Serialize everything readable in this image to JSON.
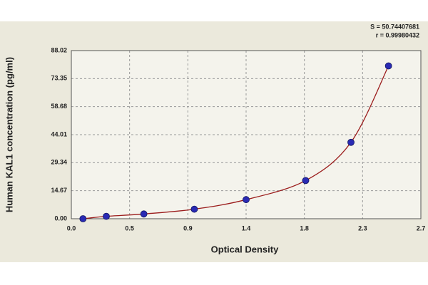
{
  "chart_data": {
    "type": "scatter",
    "x_label": "Optical Density",
    "y_label": "Human KAL1 concentration (pg/ml)",
    "annotations": [
      "S = 50.74407681",
      "r = 0.99980432"
    ],
    "x": [
      0.09,
      0.27,
      0.56,
      0.95,
      1.35,
      1.81,
      2.16,
      2.45
    ],
    "values": [
      0,
      1.25,
      2.5,
      5,
      10,
      20,
      40,
      80
    ],
    "color": "#2a2ab4",
    "line_color": "#9b1c1c",
    "xlim": [
      0,
      2.7
    ],
    "ylim": [
      0,
      88.02
    ],
    "xticks": [
      {
        "value": 0,
        "label": "0.0"
      },
      {
        "value": 0.45,
        "label": "0.5"
      },
      0.9,
      {
        "value": 1.35,
        "label": "1.4"
      },
      1.8,
      {
        "value": 2.25,
        "label": "2.3"
      },
      2.7
    ],
    "yticks": [
      {
        "value": 0,
        "label": "0.00"
      },
      14.67,
      29.34,
      44.01,
      58.68,
      73.35,
      88.02
    ],
    "grid": true
  }
}
